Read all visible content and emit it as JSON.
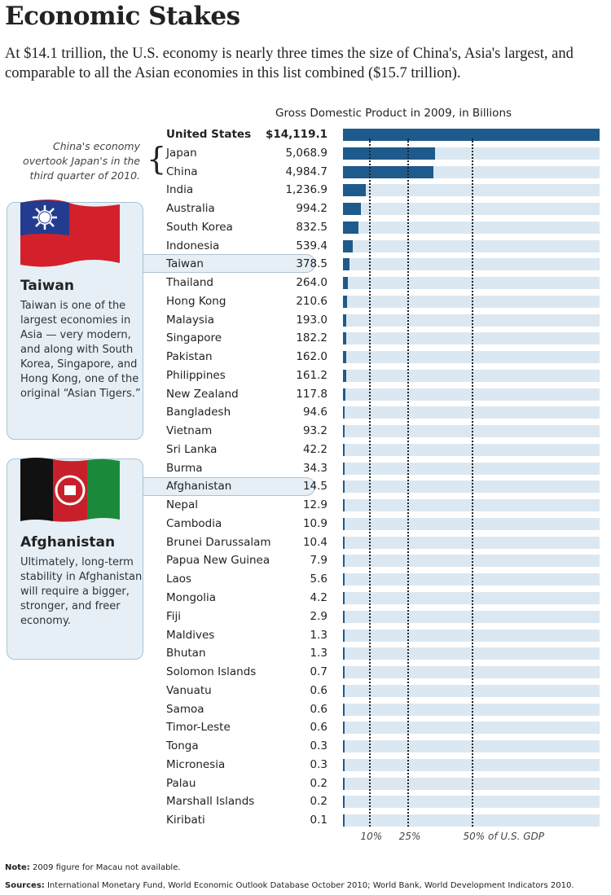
{
  "title": "Economic Stakes",
  "subtitle": "At $14.1 trillion, the U.S. economy is nearly three times the size of China's, Asia's largest, and comparable to all the Asian economies in this list combined ($15.7 trillion).",
  "annotation": "China's economy overtook Japan's in the third quarter of 2010.",
  "callouts": {
    "taiwan": {
      "heading": "Taiwan",
      "text": "Taiwan is one of the largest economies in Asia — very modern, and along with South Korea, Singapore, and Hong Kong, one of the original “Asian Tigers.”"
    },
    "afghanistan": {
      "heading": "Afghanistan",
      "text": "Ultimately, long-term stability in Afghanistan will require a bigger, stronger, and freer economy."
    }
  },
  "note_label": "Note:",
  "note": "2009 figure for Macau not available.",
  "sources_label": "Sources:",
  "sources": "International Monetary Fund, World Economic Outlook Database October 2010; World Bank, World Development Indicators 2010.",
  "colors": {
    "bar": "#1f5a8c",
    "stripe": "#dce8f1",
    "callout": "#e6eff6"
  },
  "chart_data": {
    "type": "bar",
    "orientation": "horizontal",
    "title": "Gross Domestic Product in 2009, in Billions",
    "categories": [
      "United States",
      "Japan",
      "China",
      "India",
      "Australia",
      "South Korea",
      "Indonesia",
      "Taiwan",
      "Thailand",
      "Hong Kong",
      "Malaysia",
      "Singapore",
      "Pakistan",
      "Philippines",
      "New Zealand",
      "Bangladesh",
      "Vietnam",
      "Sri Lanka",
      "Burma",
      "Afghanistan",
      "Nepal",
      "Cambodia",
      "Brunei Darussalam",
      "Papua New Guinea",
      "Laos",
      "Mongolia",
      "Fiji",
      "Maldives",
      "Bhutan",
      "Solomon Islands",
      "Vanuatu",
      "Samoa",
      "Timor-Leste",
      "Tonga",
      "Micronesia",
      "Palau",
      "Marshall Islands",
      "Kiribati"
    ],
    "values": [
      14119.1,
      5068.9,
      4984.7,
      1236.9,
      994.2,
      832.5,
      539.4,
      378.5,
      264.0,
      210.6,
      193.0,
      182.2,
      162.0,
      161.2,
      117.8,
      94.6,
      93.2,
      42.2,
      34.3,
      14.5,
      12.9,
      10.9,
      10.4,
      7.9,
      5.6,
      4.2,
      2.9,
      1.3,
      1.3,
      0.7,
      0.6,
      0.6,
      0.6,
      0.3,
      0.3,
      0.2,
      0.2,
      0.1
    ],
    "labels": [
      "$14,119.1",
      "5,068.9",
      "4,984.7",
      "1,236.9",
      "994.2",
      "832.5",
      "539.4",
      "378.5",
      "264.0",
      "210.6",
      "193.0",
      "182.2",
      "162.0",
      "161.2",
      "117.8",
      "94.6",
      "93.2",
      "42.2",
      "34.3",
      "14.5",
      "12.9",
      "10.9",
      "10.4",
      "7.9",
      "5.6",
      "4.2",
      "2.9",
      "1.3",
      "1.3",
      "0.7",
      "0.6",
      "0.6",
      "0.6",
      "0.3",
      "0.3",
      "0.2",
      "0.2",
      "0.1"
    ],
    "xlim": [
      0,
      14119.1
    ],
    "reference_lines": [
      {
        "fraction": 0.1,
        "label": "10%"
      },
      {
        "fraction": 0.25,
        "label": "25%"
      },
      {
        "fraction": 0.5,
        "label": "50% of U.S. GDP"
      }
    ],
    "highlighted": [
      "Taiwan",
      "Afghanistan"
    ]
  }
}
